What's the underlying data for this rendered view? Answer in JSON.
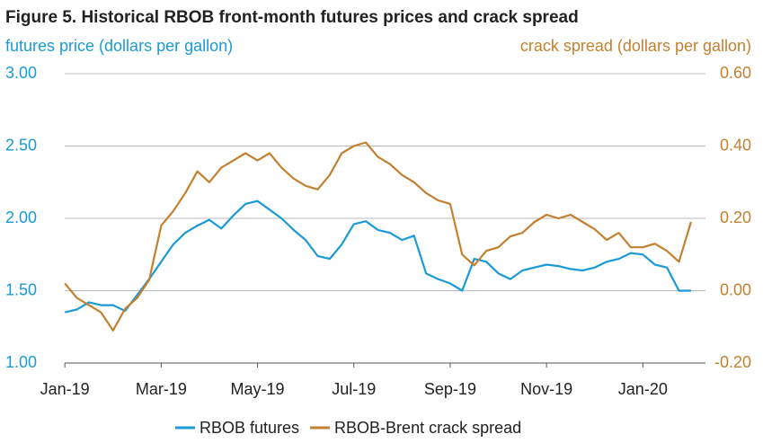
{
  "chart_data": {
    "type": "line",
    "title": "Figure 5. Historical RBOB front-month futures prices and crack spread",
    "y_label": "futures price (dollars per gallon)",
    "y2_label": "crack spread (dollars per gallon)",
    "x": [
      0,
      0.25,
      0.5,
      0.75,
      1,
      1.25,
      1.5,
      1.75,
      2,
      2.25,
      2.5,
      2.75,
      3,
      3.25,
      3.5,
      3.75,
      4,
      4.25,
      4.5,
      4.75,
      5,
      5.25,
      5.5,
      5.75,
      6,
      6.25,
      6.5,
      6.75,
      7,
      7.25,
      7.5,
      7.75,
      8,
      8.25,
      8.5,
      8.75,
      9,
      9.25,
      9.5,
      9.75,
      10,
      10.25,
      10.5,
      10.75,
      11,
      11.25,
      11.5,
      11.75,
      12,
      12.25,
      12.5,
      12.75,
      13
    ],
    "xlim": [
      -0.6,
      13.3
    ],
    "xticks": [
      {
        "value": 0,
        "label": "Jan-19"
      },
      {
        "value": 2,
        "label": "Mar-19"
      },
      {
        "value": 4,
        "label": "May-19"
      },
      {
        "value": 6,
        "label": "Jul-19"
      },
      {
        "value": 8,
        "label": "Sep-19"
      },
      {
        "value": 10,
        "label": "Nov-19"
      },
      {
        "value": 12,
        "label": "Jan-20"
      }
    ],
    "ylim": [
      1,
      3
    ],
    "yticks": [
      {
        "value": 1,
        "label": "1.00"
      },
      {
        "value": 1.5,
        "label": "1.50"
      },
      {
        "value": 2,
        "label": "2.00"
      },
      {
        "value": 2.5,
        "label": "2.50"
      },
      {
        "value": 3,
        "label": "3.00"
      }
    ],
    "y2lim": [
      -0.2,
      0.6
    ],
    "y2ticks": [
      {
        "value": -0.2,
        "label": "-0.20"
      },
      {
        "value": 0,
        "label": "0.00"
      },
      {
        "value": 0.2,
        "label": "0.20"
      },
      {
        "value": 0.4,
        "label": "0.40"
      },
      {
        "value": 0.6,
        "label": "0.60"
      }
    ],
    "grid": true,
    "legend": "bottom",
    "series": [
      {
        "name": "RBOB futures",
        "color": "#1a9bd7",
        "axis": "y",
        "values": [
          1.35,
          1.37,
          1.42,
          1.4,
          1.4,
          1.36,
          1.47,
          1.58,
          1.7,
          1.82,
          1.9,
          1.95,
          1.99,
          1.93,
          2.02,
          2.1,
          2.12,
          2.06,
          2.0,
          1.92,
          1.85,
          1.74,
          1.72,
          1.82,
          1.96,
          1.98,
          1.92,
          1.9,
          1.85,
          1.88,
          1.62,
          1.58,
          1.55,
          1.5,
          1.72,
          1.7,
          1.62,
          1.58,
          1.64,
          1.66,
          1.68,
          1.67,
          1.65,
          1.64,
          1.66,
          1.7,
          1.72,
          1.76,
          1.75,
          1.68,
          1.66,
          1.5,
          1.5
        ]
      },
      {
        "name": "RBOB-Brent crack spread",
        "color": "#c4802f",
        "axis": "y2",
        "values": [
          0.02,
          -0.02,
          -0.04,
          -0.06,
          -0.11,
          -0.05,
          -0.02,
          0.03,
          0.18,
          0.22,
          0.27,
          0.33,
          0.3,
          0.34,
          0.36,
          0.38,
          0.36,
          0.38,
          0.34,
          0.31,
          0.29,
          0.28,
          0.32,
          0.38,
          0.4,
          0.41,
          0.37,
          0.35,
          0.32,
          0.3,
          0.27,
          0.25,
          0.24,
          0.1,
          0.07,
          0.11,
          0.12,
          0.15,
          0.16,
          0.19,
          0.21,
          0.2,
          0.21,
          0.19,
          0.17,
          0.14,
          0.16,
          0.12,
          0.12,
          0.13,
          0.11,
          0.08,
          0.19
        ]
      }
    ]
  }
}
